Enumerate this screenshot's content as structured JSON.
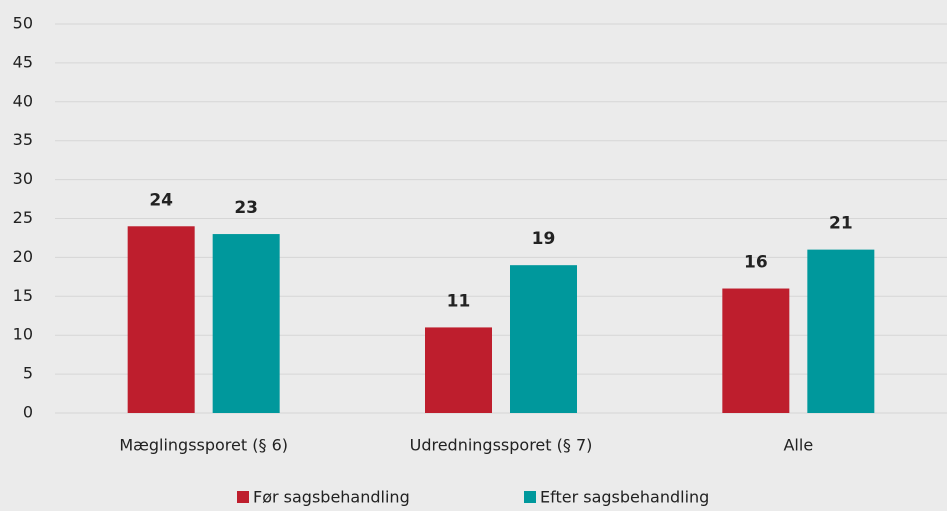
{
  "chart_data": {
    "type": "bar",
    "categories": [
      "Mæglingssporet (§ 6)",
      "Udredningssporet (§ 7)",
      "Alle"
    ],
    "series": [
      {
        "name": "Før sagsbehandling",
        "color": "#be1e2d",
        "values": [
          24,
          11,
          16
        ]
      },
      {
        "name": "Efter sagsbehandling",
        "color": "#00989c",
        "values": [
          23,
          19,
          21
        ]
      }
    ],
    "ylim": [
      0,
      50
    ],
    "yticks": [
      0,
      5,
      10,
      15,
      20,
      25,
      30,
      35,
      40,
      45,
      50
    ],
    "grid": true,
    "legend": "bottom"
  }
}
